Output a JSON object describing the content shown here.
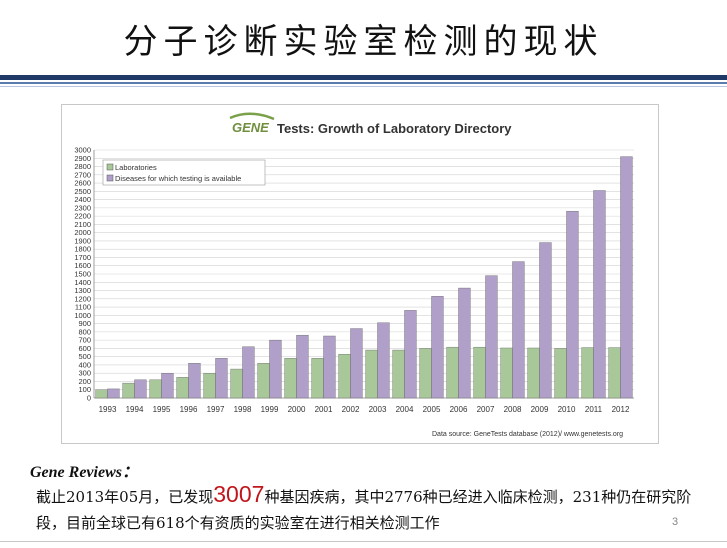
{
  "slide": {
    "title": "分子诊断实验室检测的现状",
    "page_number": "3"
  },
  "chart_data": {
    "type": "bar",
    "title": "Tests: Growth of Laboratory Directory",
    "logo_text": "GENE",
    "categories": [
      "1993",
      "1994",
      "1995",
      "1996",
      "1997",
      "1998",
      "1999",
      "2000",
      "2001",
      "2002",
      "2003",
      "2004",
      "2005",
      "2006",
      "2007",
      "2008",
      "2009",
      "2010",
      "2011",
      "2012"
    ],
    "series": [
      {
        "name": "Laboratories",
        "color": "#a9c89a",
        "values": [
          100,
          180,
          220,
          250,
          300,
          350,
          420,
          480,
          480,
          530,
          580,
          580,
          600,
          615,
          615,
          605,
          605,
          600,
          610,
          610
        ]
      },
      {
        "name": "Diseases for which testing is available",
        "color": "#b09fc9",
        "values": [
          110,
          220,
          300,
          420,
          480,
          620,
          700,
          760,
          750,
          840,
          910,
          1060,
          1230,
          1330,
          1480,
          1650,
          1880,
          2260,
          2510,
          2920
        ]
      }
    ],
    "ylim": [
      0,
      3000
    ],
    "yticks": [
      0,
      100,
      200,
      300,
      400,
      500,
      600,
      700,
      800,
      900,
      1000,
      1100,
      1200,
      1300,
      1400,
      1500,
      1600,
      1700,
      1800,
      1900,
      2000,
      2100,
      2200,
      2300,
      2400,
      2500,
      2600,
      2700,
      2800,
      2900,
      3000
    ],
    "grid": true,
    "legend_position": "top-left",
    "source_note": "Data source: GeneTests database (2012)/ www.genetests.org"
  },
  "caption": {
    "heading": "Gene Reviews：",
    "text_before": "截止2013年05月，已发现",
    "highlight": "3007",
    "text_after": "种基因疾病，其中2776种已经进入临床检测，231种仍在研究阶段，目前全球已有618个有资质的实验室在进行相关检测工作"
  }
}
